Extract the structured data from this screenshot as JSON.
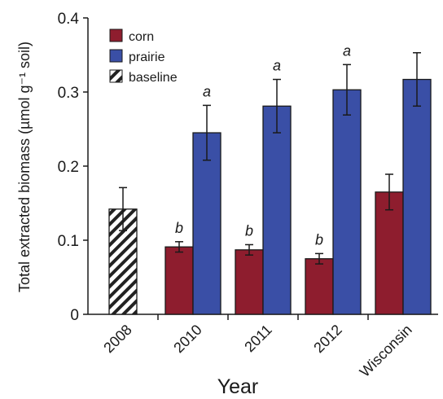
{
  "chart_data": {
    "type": "bar",
    "title": "",
    "xlabel": "Year",
    "ylabel": "Total extracted biomass (µmol g⁻¹ soil)",
    "ylim": [
      0,
      0.4
    ],
    "yticks": [
      "0",
      "0.1",
      "0.2",
      "0.3",
      "0.4"
    ],
    "ytick_values": [
      0,
      0.1,
      0.2,
      0.3,
      0.4
    ],
    "categories": [
      "2008",
      "2010",
      "2011",
      "2012",
      "Wisconsin"
    ],
    "grid": false,
    "legend_position": "top-left",
    "series": [
      {
        "name": "corn",
        "color": "#8e1d2e",
        "pattern": "solid",
        "values": [
          null,
          0.091,
          0.087,
          0.075,
          0.165
        ],
        "errors": [
          null,
          0.007,
          0.007,
          0.007,
          0.024
        ],
        "letters": [
          "",
          "b",
          "b",
          "b",
          ""
        ]
      },
      {
        "name": "prairie",
        "color": "#3a4fa6",
        "pattern": "solid",
        "values": [
          null,
          0.245,
          0.281,
          0.303,
          0.317
        ],
        "errors": [
          null,
          0.037,
          0.036,
          0.034,
          0.036
        ],
        "letters": [
          "",
          "a",
          "a",
          "a",
          ""
        ]
      },
      {
        "name": "baseline",
        "color": "#222222",
        "pattern": "hatch",
        "values": [
          0.142,
          null,
          null,
          null,
          null
        ],
        "errors": [
          0.029,
          null,
          null,
          null,
          null
        ],
        "letters": [
          "",
          "",
          "",
          "",
          ""
        ]
      }
    ]
  }
}
